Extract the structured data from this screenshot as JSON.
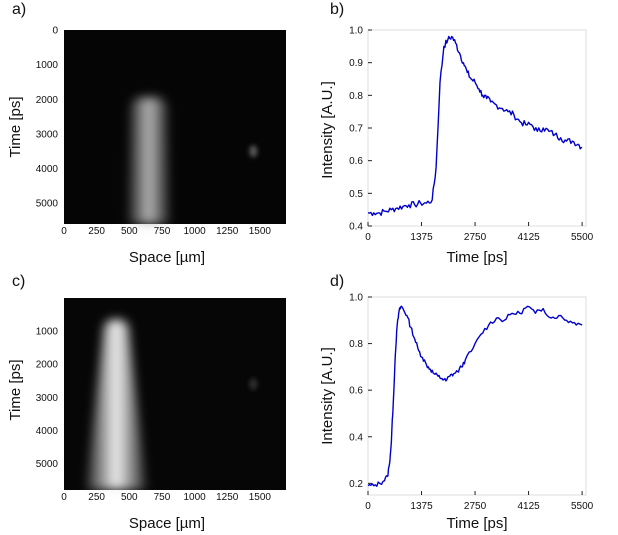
{
  "chart_data": [
    {
      "id": "a",
      "panel_label": "a)",
      "type": "heatmap",
      "xlabel": "Space [µm]",
      "ylabel": "Time [ps]",
      "xticks": [
        "0",
        "250",
        "500",
        "750",
        "1000",
        "1250",
        "1500"
      ],
      "xtick_values": [
        0,
        250,
        500,
        750,
        1000,
        1250,
        1500
      ],
      "yticks": [
        "0",
        "1000",
        "2000",
        "3000",
        "4000",
        "5000"
      ],
      "ytick_values": [
        0,
        1000,
        2000,
        3000,
        4000,
        5000
      ],
      "xlim": [
        0,
        1700
      ],
      "ylim": [
        5600,
        0
      ],
      "colormap": "gray",
      "features": [
        {
          "kind": "emission",
          "x_center": 650,
          "x_half_width": 140,
          "t_start": 1950,
          "t_end": 5600,
          "x_half_width_end": 160,
          "peak": 0.72
        },
        {
          "kind": "spot",
          "x_center": 1450,
          "t_center": 3500,
          "peak": 0.35
        }
      ]
    },
    {
      "id": "b",
      "panel_label": "b)",
      "type": "line",
      "xlabel": "Time [ps]",
      "ylabel": "Intensity [A.U.]",
      "xticks": [
        "0",
        "1375",
        "2750",
        "4125",
        "5500"
      ],
      "xtick_values": [
        0,
        1375,
        2750,
        4125,
        5500
      ],
      "yticks": [
        "0.4",
        "0.5",
        "0.6",
        "0.7",
        "0.8",
        "0.9",
        "1.0"
      ],
      "ytick_values": [
        0.4,
        0.5,
        0.6,
        0.7,
        0.8,
        0.9,
        1.0
      ],
      "xlim": [
        0,
        5600
      ],
      "ylim": [
        0.4,
        1.0
      ],
      "color": "#0000cc",
      "series": [
        {
          "name": "intensity",
          "x": [
            0,
            150,
            300,
            450,
            600,
            750,
            900,
            1050,
            1200,
            1350,
            1500,
            1650,
            1750,
            1850,
            1950,
            2050,
            2150,
            2250,
            2350,
            2450,
            2550,
            2650,
            2750,
            2850,
            2950,
            3050,
            3150,
            3300,
            3450,
            3600,
            3750,
            3900,
            4050,
            4200,
            4350,
            4500,
            4650,
            4800,
            4950,
            5100,
            5250,
            5400,
            5500
          ],
          "y": [
            0.44,
            0.44,
            0.44,
            0.445,
            0.45,
            0.455,
            0.46,
            0.465,
            0.465,
            0.47,
            0.47,
            0.48,
            0.58,
            0.84,
            0.95,
            0.97,
            0.98,
            0.96,
            0.93,
            0.9,
            0.87,
            0.85,
            0.84,
            0.82,
            0.8,
            0.79,
            0.78,
            0.77,
            0.76,
            0.75,
            0.74,
            0.72,
            0.71,
            0.71,
            0.69,
            0.7,
            0.69,
            0.68,
            0.67,
            0.66,
            0.66,
            0.65,
            0.64
          ]
        }
      ]
    },
    {
      "id": "c",
      "panel_label": "c)",
      "type": "heatmap",
      "xlabel": "Space [µm]",
      "ylabel": "Time [ps]",
      "xticks": [
        "0",
        "250",
        "500",
        "750",
        "1000",
        "1250",
        "1500"
      ],
      "xtick_values": [
        0,
        250,
        500,
        750,
        1000,
        1250,
        1500
      ],
      "yticks": [
        "1000",
        "2000",
        "3000",
        "4000",
        "5000"
      ],
      "ytick_values": [
        1000,
        2000,
        3000,
        4000,
        5000
      ],
      "xlim": [
        0,
        1700
      ],
      "ylim": [
        5800,
        0
      ],
      "colormap": "gray",
      "features": [
        {
          "kind": "emission",
          "x_center": 400,
          "x_half_width": 100,
          "t_start": 650,
          "t_end": 5800,
          "x_half_width_end": 230,
          "peak": 0.95
        },
        {
          "kind": "spot",
          "x_center": 1450,
          "t_center": 2600,
          "peak": 0.18
        }
      ]
    },
    {
      "id": "d",
      "panel_label": "d)",
      "type": "line",
      "xlabel": "Time [ps]",
      "ylabel": "Intensity [A.U.]",
      "xticks": [
        "0",
        "1375",
        "2750",
        "4125",
        "5500"
      ],
      "xtick_values": [
        0,
        1375,
        2750,
        4125,
        5500
      ],
      "yticks": [
        "0.2",
        "0.4",
        "0.6",
        "0.8",
        "1.0"
      ],
      "ytick_values": [
        0.2,
        0.4,
        0.6,
        0.8,
        1.0
      ],
      "xlim": [
        0,
        5600
      ],
      "ylim": [
        0.15,
        1.0
      ],
      "color": "#0000cc",
      "series": [
        {
          "name": "intensity",
          "x": [
            0,
            150,
            300,
            400,
            500,
            550,
            600,
            650,
            700,
            750,
            800,
            850,
            900,
            1000,
            1100,
            1200,
            1300,
            1400,
            1500,
            1600,
            1700,
            1800,
            1900,
            2000,
            2100,
            2200,
            2300,
            2400,
            2500,
            2700,
            2900,
            3100,
            3300,
            3500,
            3700,
            3900,
            4100,
            4300,
            4500,
            4700,
            4900,
            5100,
            5300,
            5500
          ],
          "y": [
            0.19,
            0.19,
            0.2,
            0.21,
            0.23,
            0.28,
            0.38,
            0.55,
            0.75,
            0.88,
            0.94,
            0.96,
            0.95,
            0.92,
            0.87,
            0.82,
            0.77,
            0.74,
            0.71,
            0.69,
            0.67,
            0.66,
            0.65,
            0.64,
            0.66,
            0.67,
            0.68,
            0.7,
            0.73,
            0.78,
            0.84,
            0.88,
            0.91,
            0.9,
            0.93,
            0.93,
            0.96,
            0.93,
            0.95,
            0.91,
            0.92,
            0.9,
            0.89,
            0.88
          ]
        }
      ]
    }
  ]
}
